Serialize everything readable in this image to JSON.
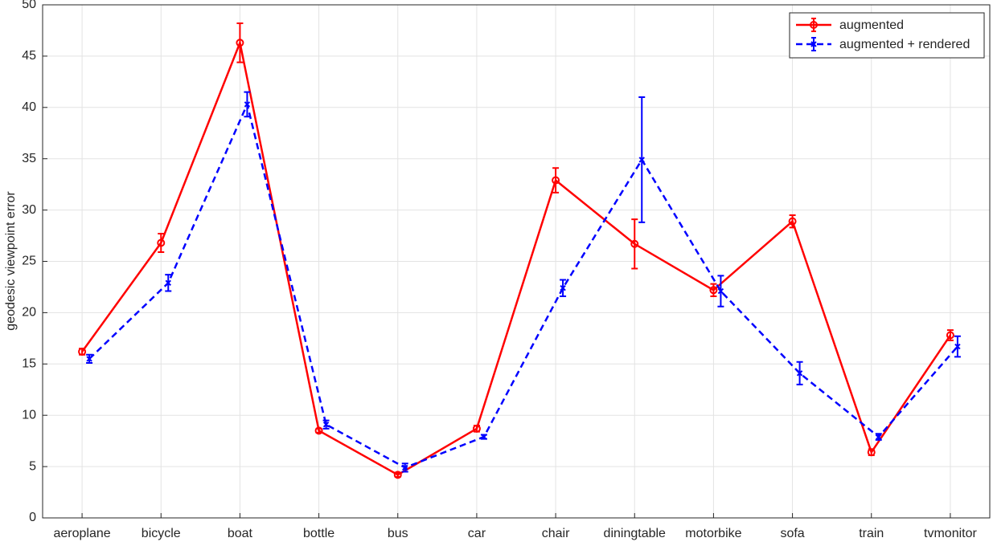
{
  "chart_data": {
    "type": "line",
    "ylabel": "geodesic viewpoint error",
    "categories": [
      "aeroplane",
      "bicycle",
      "boat",
      "bottle",
      "bus",
      "car",
      "chair",
      "diningtable",
      "motorbike",
      "sofa",
      "train",
      "tvmonitor"
    ],
    "series": [
      {
        "name": "augmented",
        "color": "#ff0000",
        "marker": "circle",
        "dash": false,
        "values": [
          16.2,
          26.8,
          46.3,
          8.5,
          4.2,
          8.7,
          32.9,
          26.7,
          22.2,
          28.9,
          6.4,
          17.8
        ],
        "errors": [
          0.3,
          0.9,
          1.9,
          0.2,
          0.2,
          0.3,
          1.2,
          2.4,
          0.6,
          0.6,
          0.3,
          0.5
        ]
      },
      {
        "name": "augmented + rendered",
        "color": "#0000ff",
        "marker": "x",
        "dash": true,
        "values": [
          15.5,
          22.9,
          40.3,
          9.1,
          4.9,
          7.9,
          22.4,
          34.9,
          22.1,
          14.1,
          7.9,
          16.7
        ],
        "errors": [
          0.4,
          0.8,
          1.2,
          0.4,
          0.4,
          0.2,
          0.8,
          6.1,
          1.5,
          1.1,
          0.3,
          1.0
        ]
      }
    ],
    "ylim": [
      0,
      50
    ],
    "yticks": [
      0,
      5,
      10,
      15,
      20,
      25,
      30,
      35,
      40,
      45,
      50
    ],
    "grid": true,
    "legend": "upper right"
  }
}
